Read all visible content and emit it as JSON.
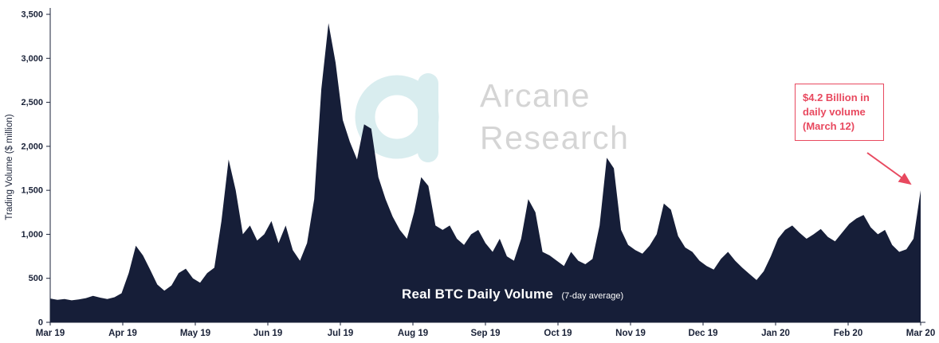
{
  "watermark": {
    "line1": "Arcane",
    "line2": "Research",
    "text_color": "#d5d5d5",
    "logo_color": "#d9edef"
  },
  "annotation": {
    "lines": [
      "$4.2 Billion in",
      "daily volume",
      "(March 12)"
    ],
    "color": "#e8495f"
  },
  "chart_data": {
    "type": "area",
    "title": "Real BTC Daily Volume",
    "subtitle": "(7-day average)",
    "ylabel": "Trading Volume ($ million)",
    "x_tick_labels": [
      "Mar 19",
      "Apr 19",
      "May 19",
      "Jun 19",
      "Jul 19",
      "Aug 19",
      "Sep 19",
      "Oct 19",
      "Nov 19",
      "Dec 19",
      "Jan 20",
      "Feb 20",
      "Mar 20"
    ],
    "y_ticks": [
      0,
      500,
      1000,
      1500,
      2000,
      2500,
      3000,
      3500
    ],
    "ylim": [
      0,
      3500
    ],
    "grid": false,
    "legend": "none",
    "area_color": "#161e38",
    "text_color": "#1a2238",
    "values": [
      270,
      255,
      265,
      250,
      260,
      275,
      300,
      280,
      265,
      285,
      330,
      560,
      870,
      760,
      600,
      430,
      360,
      420,
      560,
      610,
      500,
      450,
      560,
      620,
      1150,
      1850,
      1500,
      1000,
      1100,
      930,
      1000,
      1150,
      900,
      1100,
      820,
      700,
      900,
      1400,
      2650,
      3400,
      2950,
      2300,
      2050,
      1850,
      2250,
      2200,
      1650,
      1400,
      1200,
      1050,
      950,
      1250,
      1650,
      1550,
      1100,
      1050,
      1100,
      950,
      880,
      1000,
      1050,
      900,
      800,
      950,
      750,
      700,
      950,
      1400,
      1250,
      800,
      760,
      700,
      640,
      800,
      700,
      660,
      720,
      1100,
      1870,
      1750,
      1050,
      880,
      820,
      780,
      870,
      1000,
      1350,
      1280,
      980,
      850,
      800,
      700,
      640,
      600,
      720,
      800,
      700,
      620,
      550,
      480,
      580,
      750,
      950,
      1050,
      1100,
      1020,
      950,
      1000,
      1060,
      970,
      920,
      1020,
      1120,
      1180,
      1220,
      1080,
      1000,
      1050,
      880,
      800,
      830,
      950,
      1500
    ]
  }
}
